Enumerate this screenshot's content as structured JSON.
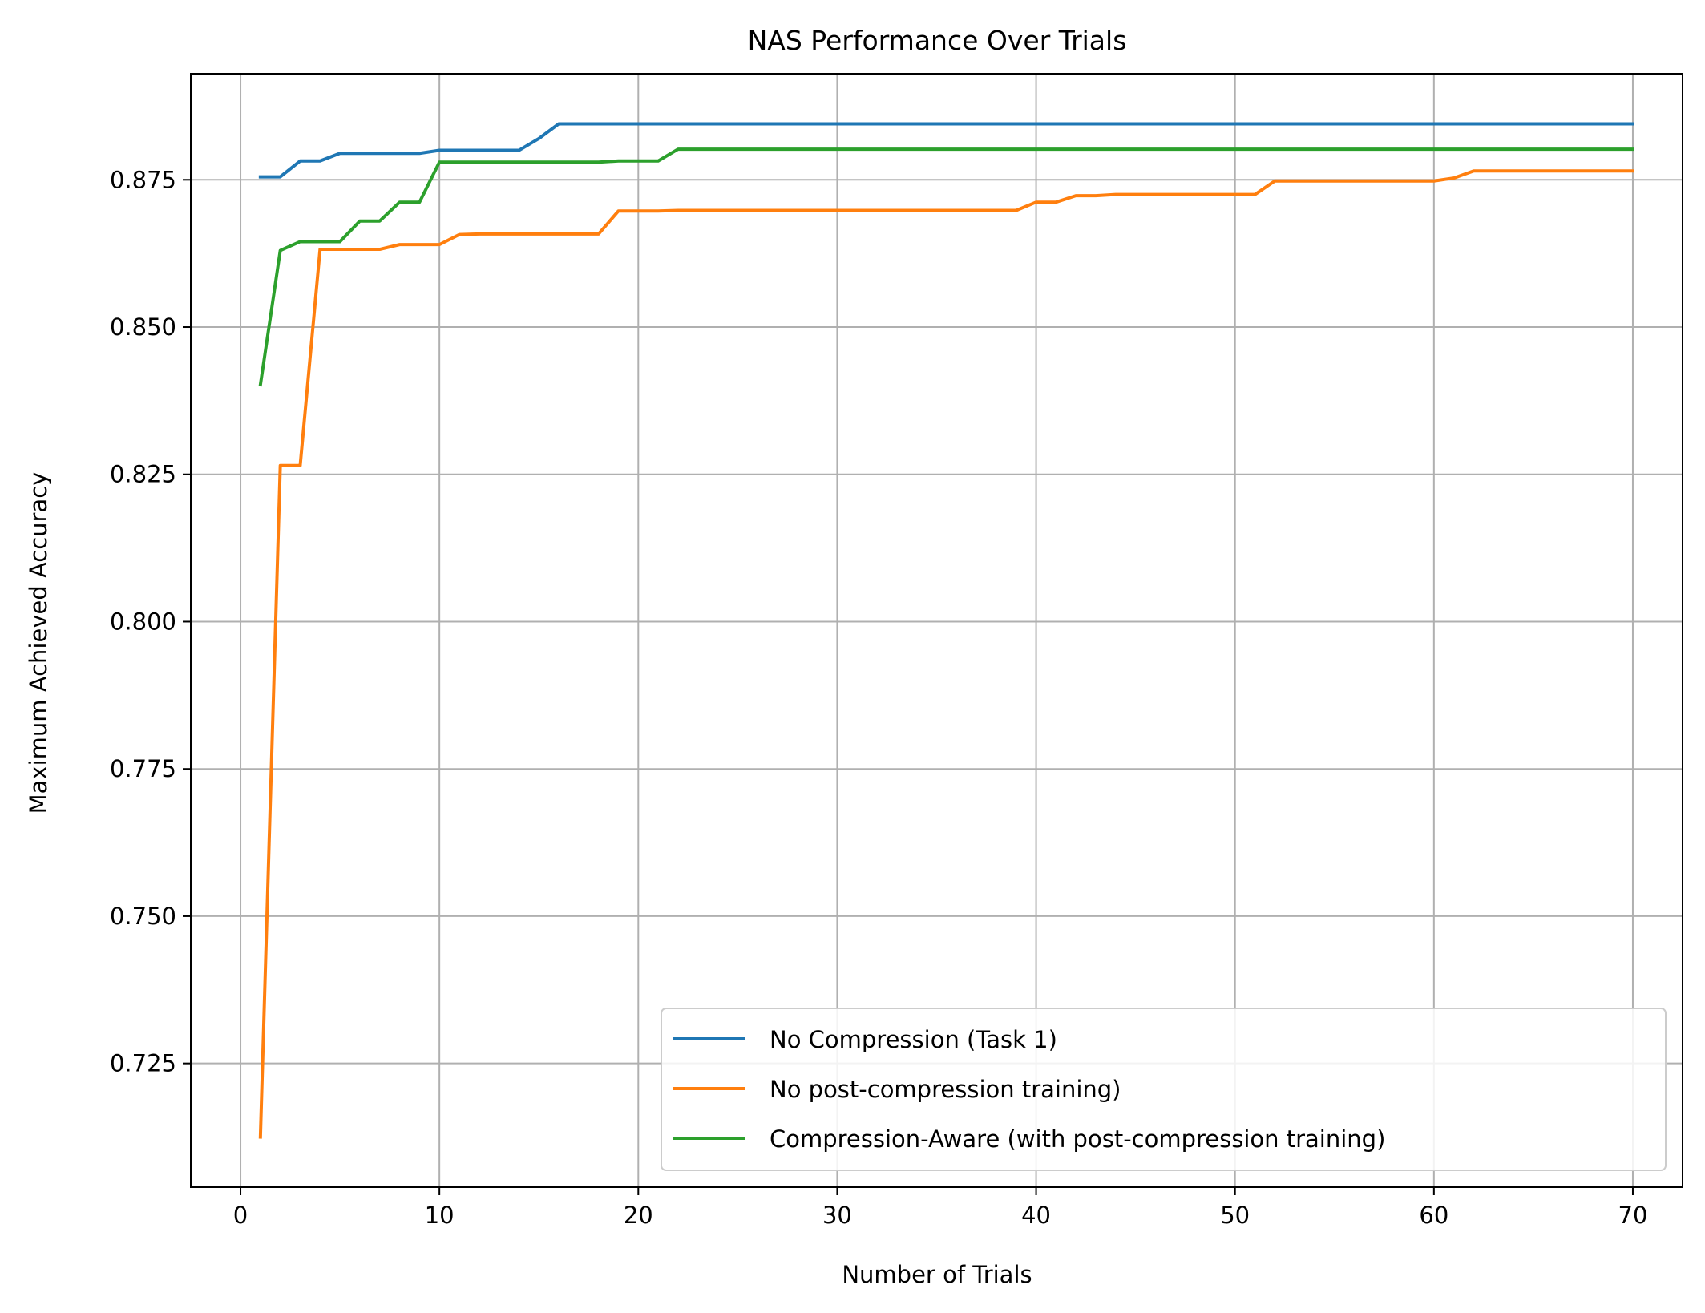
{
  "chart_data": {
    "type": "line",
    "title": "NAS Performance Over Trials",
    "xlabel": "Number of Trials",
    "ylabel": "Maximum Achieved Accuracy",
    "xlim": [
      -2.5,
      72.5
    ],
    "ylim": [
      0.704,
      0.893
    ],
    "xticks": [
      0,
      10,
      20,
      30,
      40,
      50,
      60,
      70
    ],
    "yticks": [
      0.725,
      0.75,
      0.775,
      0.8,
      0.825,
      0.85,
      0.875
    ],
    "xtick_labels": [
      "0",
      "10",
      "20",
      "30",
      "40",
      "50",
      "60",
      "70"
    ],
    "ytick_labels": [
      "0.725",
      "0.750",
      "0.775",
      "0.800",
      "0.825",
      "0.850",
      "0.875"
    ],
    "grid": true,
    "legend_position": "lower-right",
    "series": [
      {
        "name": "No Compression (Task 1)",
        "color": "#1f77b4",
        "points": [
          [
            1,
            0.8755
          ],
          [
            2,
            0.8755
          ],
          [
            3,
            0.8782
          ],
          [
            4,
            0.8782
          ],
          [
            5,
            0.8795
          ],
          [
            6,
            0.8795
          ],
          [
            7,
            0.8795
          ],
          [
            8,
            0.8795
          ],
          [
            9,
            0.8795
          ],
          [
            10,
            0.88
          ],
          [
            11,
            0.88
          ],
          [
            12,
            0.88
          ],
          [
            13,
            0.88
          ],
          [
            14,
            0.88
          ],
          [
            15,
            0.882
          ],
          [
            16,
            0.8845
          ],
          [
            20,
            0.8845
          ],
          [
            30,
            0.8845
          ],
          [
            40,
            0.8845
          ],
          [
            50,
            0.8845
          ],
          [
            60,
            0.8845
          ],
          [
            70,
            0.8845
          ]
        ]
      },
      {
        "name": "No post-compression training)",
        "color": "#ff7f0e",
        "points": [
          [
            1,
            0.7125
          ],
          [
            2,
            0.8265
          ],
          [
            3,
            0.8265
          ],
          [
            4,
            0.8632
          ],
          [
            5,
            0.8632
          ],
          [
            6,
            0.8632
          ],
          [
            7,
            0.8632
          ],
          [
            8,
            0.864
          ],
          [
            9,
            0.864
          ],
          [
            10,
            0.864
          ],
          [
            11,
            0.8657
          ],
          [
            12,
            0.8658
          ],
          [
            13,
            0.8658
          ],
          [
            14,
            0.8658
          ],
          [
            15,
            0.8658
          ],
          [
            16,
            0.8658
          ],
          [
            17,
            0.8658
          ],
          [
            18,
            0.8658
          ],
          [
            19,
            0.8697
          ],
          [
            20,
            0.8697
          ],
          [
            21,
            0.8697
          ],
          [
            22,
            0.8698
          ],
          [
            30,
            0.8698
          ],
          [
            39,
            0.8698
          ],
          [
            40,
            0.8712
          ],
          [
            41,
            0.8712
          ],
          [
            42,
            0.8723
          ],
          [
            43,
            0.8723
          ],
          [
            44,
            0.8725
          ],
          [
            45,
            0.8725
          ],
          [
            50,
            0.8725
          ],
          [
            51,
            0.8725
          ],
          [
            52,
            0.8748
          ],
          [
            53,
            0.8748
          ],
          [
            55,
            0.8748
          ],
          [
            60,
            0.8748
          ],
          [
            61,
            0.8753
          ],
          [
            62,
            0.8765
          ],
          [
            65,
            0.8765
          ],
          [
            70,
            0.8765
          ]
        ]
      },
      {
        "name": "Compression-Aware (with post-compression training)",
        "color": "#2ca02c",
        "points": [
          [
            1,
            0.8402
          ],
          [
            2,
            0.863
          ],
          [
            3,
            0.8645
          ],
          [
            4,
            0.8645
          ],
          [
            5,
            0.8645
          ],
          [
            6,
            0.868
          ],
          [
            7,
            0.868
          ],
          [
            8,
            0.8712
          ],
          [
            9,
            0.8712
          ],
          [
            10,
            0.878
          ],
          [
            11,
            0.878
          ],
          [
            15,
            0.878
          ],
          [
            18,
            0.878
          ],
          [
            19,
            0.8782
          ],
          [
            20,
            0.8782
          ],
          [
            21,
            0.8782
          ],
          [
            22,
            0.8802
          ],
          [
            30,
            0.8802
          ],
          [
            40,
            0.8802
          ],
          [
            50,
            0.8802
          ],
          [
            60,
            0.8802
          ],
          [
            70,
            0.8802
          ]
        ]
      }
    ]
  }
}
